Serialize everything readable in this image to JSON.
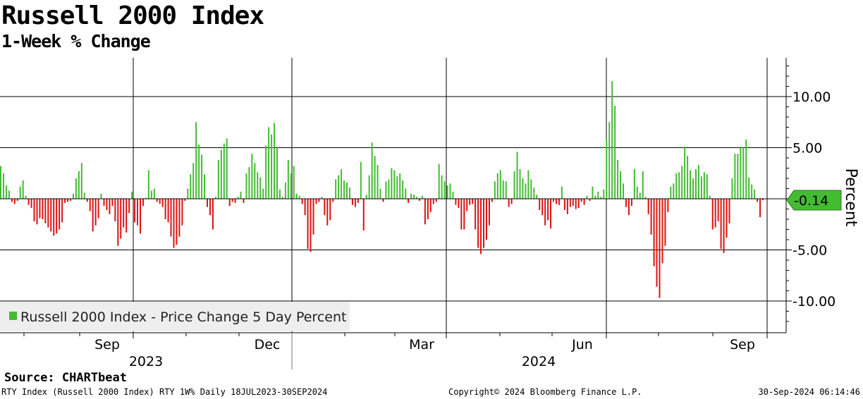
{
  "header": {
    "title": "Russell 2000 Index",
    "subtitle": "1-Week % Change"
  },
  "footer": {
    "source": "Source: CHARTbeat",
    "left": "RTY Index (Russell 2000 Index) RTY 1W%  Daily 18JUL2023-30SEP2024",
    "center": "Copyright© 2024 Bloomberg Finance L.P.",
    "right": "30-Sep-2024 06:14:46"
  },
  "colors": {
    "positive": "#44bb33",
    "negative": "#dd1111",
    "last_value_box": "#44bb33"
  },
  "chart_data": {
    "type": "bar",
    "series": [
      {
        "name": "Russell 2000 Index - Price Change 5 Day Percent",
        "values": [
          3.2,
          2.5,
          1.3,
          0.8,
          -0.3,
          -0.5,
          -0.2,
          1.2,
          1.8,
          0.3,
          -0.6,
          -0.9,
          -2.2,
          -2.5,
          -1.9,
          -2.0,
          -2.4,
          -2.8,
          -3.2,
          -3.6,
          -3.4,
          -3.0,
          -2.3,
          -0.4,
          -0.3,
          -0.2,
          0.5,
          2.0,
          2.7,
          3.5,
          0.6,
          -0.3,
          -1.2,
          -3.2,
          -2.6,
          -1.9,
          0.5,
          -0.7,
          -1.1,
          -1.5,
          -0.7,
          -2.2,
          -4.6,
          -3.9,
          -2.8,
          -3.3,
          -1.4,
          0.7,
          -2.3,
          -2.6,
          -3.4,
          -0.7,
          0.1,
          2.8,
          0.8,
          1.0,
          -0.3,
          -0.5,
          -0.8,
          -2.0,
          -2.3,
          -3.7,
          -4.8,
          -4.5,
          -3.7,
          -2.6,
          -0.2,
          1.0,
          2.4,
          3.5,
          7.5,
          5.3,
          4.3,
          2.4,
          -0.8,
          -1.6,
          -3.0,
          0.2,
          3.8,
          4.8,
          5.4,
          5.9,
          -0.7,
          -0.3,
          -0.4,
          0.2,
          0.7,
          -0.4,
          2.5,
          3.1,
          4.4,
          3.5,
          2.6,
          2.1,
          1.0,
          5.2,
          7.0,
          6.3,
          7.4,
          5.0,
          0.9,
          0.2,
          1.6,
          3.8,
          2.5,
          3.2,
          0.5,
          0.3,
          -0.5,
          -1.6,
          -4.9,
          -5.2,
          -3.5,
          -0.5,
          -0.3,
          0.2,
          -1.6,
          -2.6,
          -2.1,
          -0.3,
          1.9,
          2.3,
          2.9,
          1.8,
          1.6,
          1.1,
          -0.6,
          -0.8,
          -0.4,
          3.6,
          -3.1,
          0.4,
          2.3,
          5.5,
          4.2,
          3.3,
          1.0,
          -0.3,
          1.7,
          1.9,
          3.0,
          2.8,
          2.2,
          2.5,
          1.8,
          1.0,
          -0.4,
          0.5,
          0.4,
          0.2,
          -0.2,
          0.3,
          -2.5,
          -2.0,
          -1.3,
          -0.5,
          -0.3,
          3.4,
          2.3,
          1.7,
          1.3,
          1.5,
          0.7,
          -0.6,
          -0.9,
          -3.0,
          -3.0,
          -1.2,
          -0.6,
          -0.5,
          -3.0,
          -4.8,
          -5.4,
          -4.8,
          -4.0,
          -2.6,
          -0.3,
          1.7,
          2.5,
          2.8,
          1.8,
          1.7,
          -0.8,
          -0.5,
          2.7,
          4.6,
          2.9,
          2.0,
          1.5,
          2.8,
          1.9,
          1.1,
          0.4,
          -1.1,
          -1.6,
          -2.6,
          -2.1,
          -2.9,
          -0.3,
          -0.5,
          -0.6,
          1.2,
          -1.1,
          -1.5,
          -0.8,
          -0.7,
          -1.0,
          -0.9,
          -0.3,
          -0.6,
          0.3,
          -0.2,
          1.2,
          0.3,
          0.7,
          0.2,
          0.9,
          5.8,
          7.5,
          11.5,
          9.1,
          3.8,
          2.7,
          1.5,
          -0.8,
          -1.6,
          -0.7,
          2.9,
          1.2,
          0.6,
          2.7,
          0.2,
          -1.5,
          -3.5,
          -6.6,
          -8.6,
          -9.7,
          -6.3,
          -4.6,
          -1.3,
          1.2,
          1.5,
          2.5,
          2.6,
          3.2,
          5.1,
          4.2,
          2.8,
          2.0,
          2.9,
          3.3,
          2.2,
          2.6,
          2.4,
          0.3,
          -3.0,
          -2.8,
          -2.2,
          -4.9,
          -5.3,
          -3.8,
          -2.4,
          2.0,
          4.4,
          4.4,
          5.1,
          5.0,
          5.8,
          2.1,
          1.4,
          0.9,
          -0.3,
          -1.8,
          -0.14
        ]
      }
    ],
    "x_axis": {
      "tick_labels": [
        "Sep",
        "Dec",
        "Mar",
        "Jun",
        "Sep"
      ],
      "year_labels": [
        "2023",
        "2024"
      ],
      "range": [
        "18JUL2023",
        "30SEP2024"
      ]
    },
    "y_axis": {
      "label": "Percent",
      "ticks": [
        10,
        5,
        -5,
        -10
      ],
      "tick_labels": [
        "10.00",
        "5.00",
        "-5.00",
        "-10.00"
      ],
      "range": [
        -13,
        14
      ],
      "side": "right"
    },
    "last_value_label": "-0.14",
    "legend": {
      "placement": "bottom-left"
    },
    "grid": true
  }
}
